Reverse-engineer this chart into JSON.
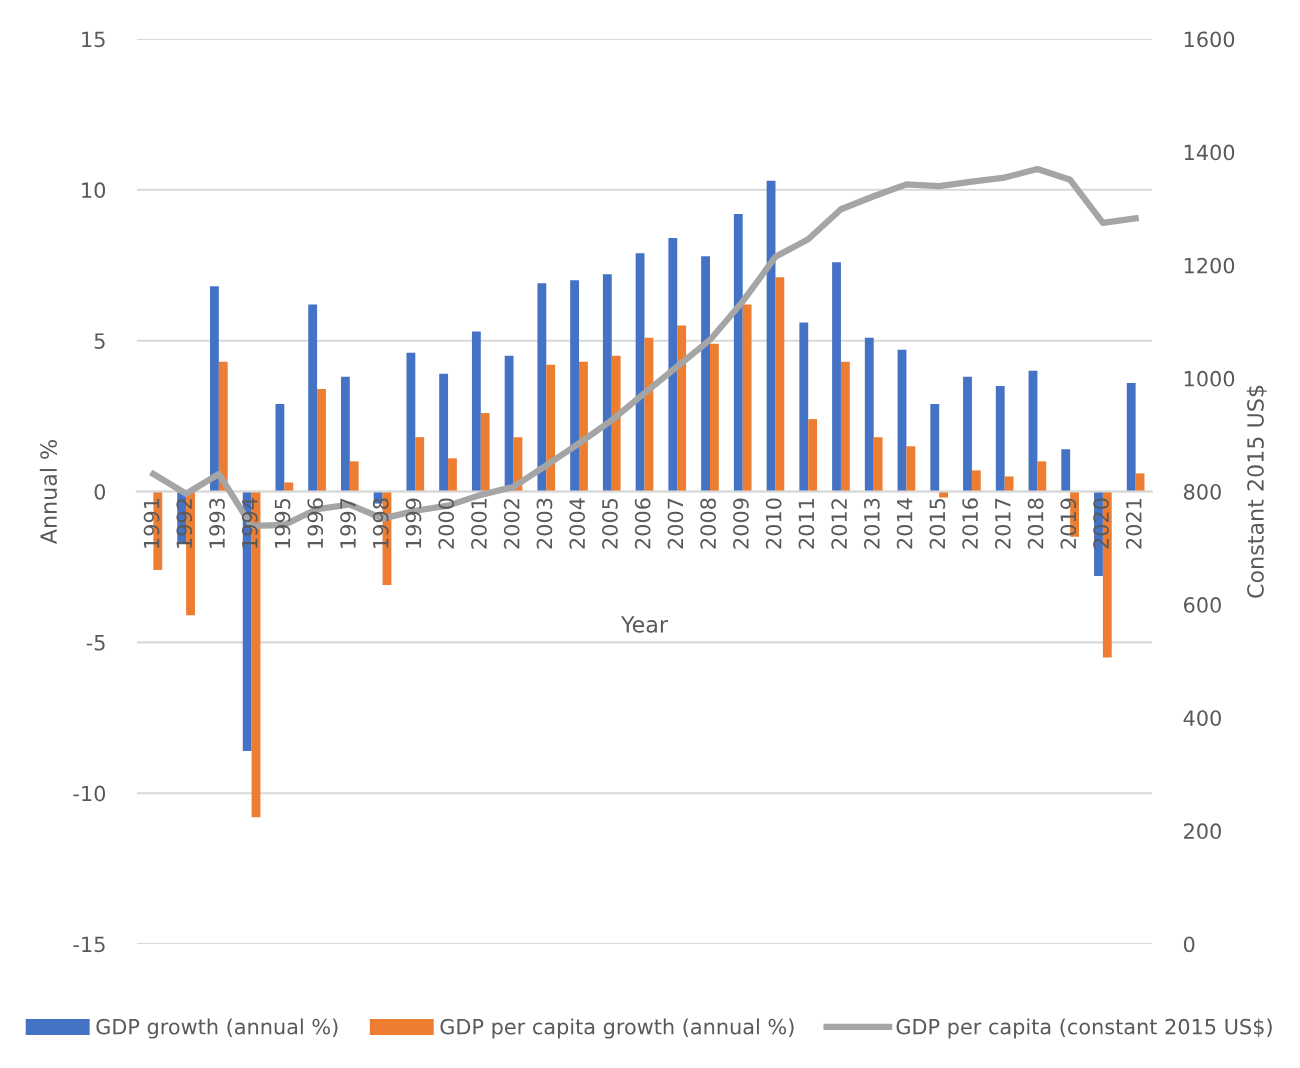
{
  "chart_data": {
    "type": "bar",
    "xlabel": "Year",
    "ylabel": "Annual %",
    "y2label": "Constant 2015 US$",
    "categories": [
      "1991",
      "1992",
      "1993",
      "1994",
      "1995",
      "1996",
      "1997",
      "1998",
      "1999",
      "2000",
      "2001",
      "2002",
      "2003",
      "2004",
      "2005",
      "2006",
      "2007",
      "2008",
      "2009",
      "2010",
      "2011",
      "2012",
      "2013",
      "2014",
      "2015",
      "2016",
      "2017",
      "2018",
      "2019",
      "2020",
      "2021"
    ],
    "series": [
      {
        "name": "GDP growth (annual %)",
        "color": "#4472c4",
        "values": [
          0.0,
          -1.7,
          6.8,
          -8.6,
          2.9,
          6.2,
          3.8,
          -0.4,
          4.6,
          3.9,
          5.3,
          4.5,
          6.9,
          7.0,
          7.2,
          7.9,
          8.4,
          7.8,
          9.2,
          10.3,
          5.6,
          7.6,
          5.1,
          4.7,
          2.9,
          3.8,
          3.5,
          4.0,
          1.4,
          -2.8,
          3.6
        ]
      },
      {
        "name": "GDP per capita growth (annual %)",
        "color": "#ed7d31",
        "values": [
          -2.6,
          -4.1,
          4.3,
          -10.8,
          0.3,
          3.4,
          1.0,
          -3.1,
          1.8,
          1.1,
          2.6,
          1.8,
          4.2,
          4.3,
          4.5,
          5.1,
          5.5,
          4.9,
          6.2,
          7.1,
          2.4,
          4.3,
          1.8,
          1.5,
          -0.2,
          0.7,
          0.5,
          1.0,
          -1.5,
          -5.5,
          0.6
        ]
      },
      {
        "name": "GDP per capita (constant 2015 US$)",
        "type": "line",
        "axis": "y2",
        "color": "#a5a5a5",
        "values": [
          831,
          796,
          831,
          739,
          741,
          769,
          777,
          752,
          766,
          775,
          794,
          808,
          846,
          885,
          926,
          974,
          1021,
          1068,
          1136,
          1215,
          1246,
          1299,
          1322,
          1343,
          1340,
          1348,
          1355,
          1370,
          1351,
          1275,
          1283
        ]
      }
    ],
    "ylim": [
      -15,
      15
    ],
    "yticks": [
      {
        "value": -15,
        "label": "-15"
      },
      {
        "value": -10,
        "label": "-10"
      },
      {
        "value": -5,
        "label": "-5"
      },
      0,
      5,
      10,
      15
    ],
    "y2lim": [
      0,
      1600
    ],
    "y2ticks": [
      0,
      200,
      400,
      600,
      800,
      1000,
      1200,
      1400,
      1600
    ],
    "grid": "y",
    "legend": "bottom",
    "marker": "none",
    "line_style": "solid"
  }
}
